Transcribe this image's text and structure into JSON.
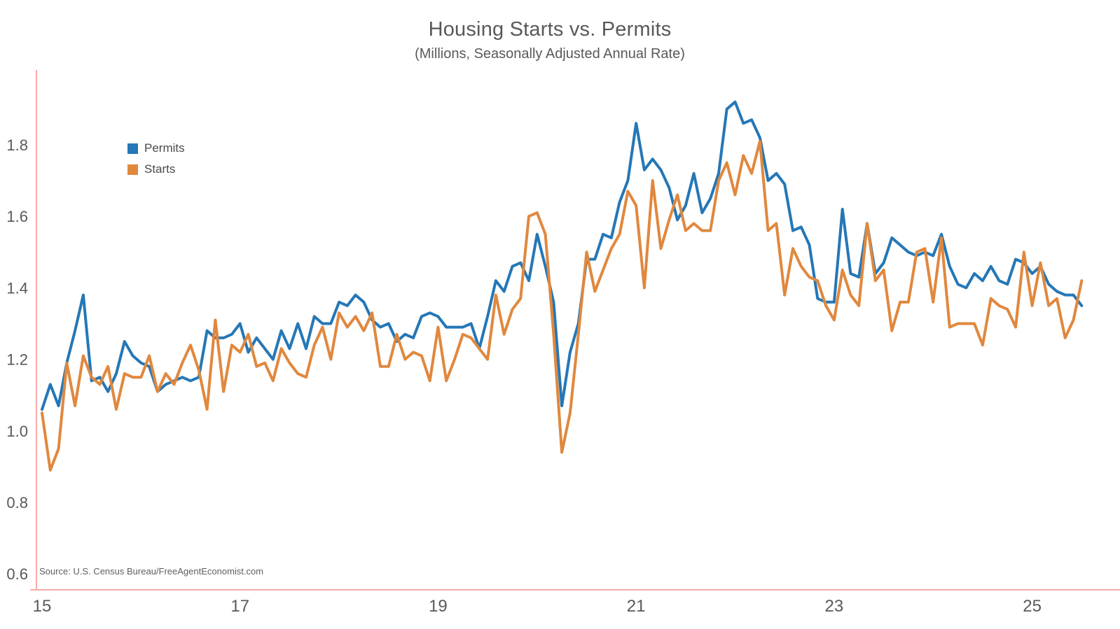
{
  "title": "Housing Starts vs. Permits",
  "subtitle": "(Millions, Seasonally Adjusted Annual Rate)",
  "source_note": "Source: U.S. Census Bureau/FreeAgentEconomist.com",
  "legend": {
    "items": [
      {
        "label": "Permits",
        "color": "#2577b6"
      },
      {
        "label": "Starts",
        "color": "#e0883e"
      }
    ]
  },
  "colors": {
    "permits_line": "#2577b6",
    "starts_line": "#e0883e",
    "axis_line": "#f7abab",
    "tick_label": "#595959",
    "title_text": "#595959"
  },
  "chart_data": {
    "type": "line",
    "title": "Housing Starts vs. Permits",
    "subtitle": "(Millions, Seasonally Adjusted Annual Rate)",
    "xlabel": "",
    "ylabel": "",
    "frequency": "monthly",
    "x_start": "2015-01",
    "x_end": "2025-07",
    "x_tick_years": [
      2015,
      2017,
      2019,
      2021,
      2023,
      2025
    ],
    "x_tick_labels": [
      "15",
      "17",
      "19",
      "21",
      "23",
      "25"
    ],
    "y_ticks": [
      0.6,
      0.8,
      1.0,
      1.2,
      1.4,
      1.6,
      1.8
    ],
    "y_tick_labels": [
      "0.6",
      "0.8",
      "1.0",
      "1.2",
      "1.4",
      "1.6",
      "1.8"
    ],
    "ylim": [
      0.56,
      2.01
    ],
    "grid": false,
    "legend_position": "upper-left-inside",
    "series": [
      {
        "name": "Permits",
        "color": "#2577b6",
        "values": [
          1.06,
          1.13,
          1.07,
          1.19,
          1.28,
          1.38,
          1.14,
          1.15,
          1.11,
          1.16,
          1.25,
          1.21,
          1.19,
          1.18,
          1.11,
          1.13,
          1.14,
          1.15,
          1.14,
          1.15,
          1.28,
          1.26,
          1.26,
          1.27,
          1.3,
          1.22,
          1.26,
          1.23,
          1.2,
          1.28,
          1.23,
          1.3,
          1.23,
          1.32,
          1.3,
          1.3,
          1.36,
          1.35,
          1.38,
          1.36,
          1.31,
          1.29,
          1.3,
          1.25,
          1.27,
          1.26,
          1.32,
          1.33,
          1.32,
          1.29,
          1.29,
          1.29,
          1.3,
          1.23,
          1.32,
          1.42,
          1.39,
          1.46,
          1.47,
          1.42,
          1.55,
          1.46,
          1.36,
          1.07,
          1.22,
          1.3,
          1.48,
          1.48,
          1.55,
          1.54,
          1.64,
          1.7,
          1.86,
          1.73,
          1.76,
          1.73,
          1.68,
          1.59,
          1.63,
          1.72,
          1.61,
          1.65,
          1.72,
          1.9,
          1.92,
          1.86,
          1.87,
          1.82,
          1.7,
          1.72,
          1.69,
          1.56,
          1.57,
          1.52,
          1.37,
          1.36,
          1.36,
          1.62,
          1.44,
          1.43,
          1.58,
          1.44,
          1.47,
          1.54,
          1.52,
          1.5,
          1.49,
          1.5,
          1.49,
          1.55,
          1.46,
          1.41,
          1.4,
          1.44,
          1.42,
          1.46,
          1.42,
          1.41,
          1.48,
          1.47,
          1.44,
          1.46,
          1.41,
          1.39,
          1.38,
          1.38,
          1.35
        ]
      },
      {
        "name": "Starts",
        "color": "#e0883e",
        "values": [
          1.05,
          0.89,
          0.95,
          1.19,
          1.07,
          1.21,
          1.15,
          1.13,
          1.18,
          1.06,
          1.16,
          1.15,
          1.15,
          1.21,
          1.11,
          1.16,
          1.13,
          1.19,
          1.24,
          1.17,
          1.06,
          1.31,
          1.11,
          1.24,
          1.22,
          1.27,
          1.18,
          1.19,
          1.14,
          1.23,
          1.19,
          1.16,
          1.15,
          1.24,
          1.29,
          1.2,
          1.33,
          1.29,
          1.32,
          1.28,
          1.33,
          1.18,
          1.18,
          1.27,
          1.2,
          1.22,
          1.21,
          1.14,
          1.29,
          1.14,
          1.2,
          1.27,
          1.26,
          1.23,
          1.2,
          1.38,
          1.27,
          1.34,
          1.37,
          1.6,
          1.61,
          1.55,
          1.27,
          0.94,
          1.05,
          1.27,
          1.5,
          1.39,
          1.45,
          1.51,
          1.55,
          1.67,
          1.63,
          1.4,
          1.7,
          1.51,
          1.59,
          1.66,
          1.56,
          1.58,
          1.56,
          1.56,
          1.7,
          1.75,
          1.66,
          1.77,
          1.72,
          1.81,
          1.56,
          1.58,
          1.38,
          1.51,
          1.46,
          1.43,
          1.42,
          1.35,
          1.31,
          1.45,
          1.38,
          1.35,
          1.58,
          1.42,
          1.45,
          1.28,
          1.36,
          1.36,
          1.5,
          1.51,
          1.36,
          1.54,
          1.29,
          1.3,
          1.3,
          1.3,
          1.24,
          1.37,
          1.35,
          1.34,
          1.29,
          1.5,
          1.35,
          1.47,
          1.35,
          1.37,
          1.26,
          1.31,
          1.42
        ]
      }
    ]
  }
}
